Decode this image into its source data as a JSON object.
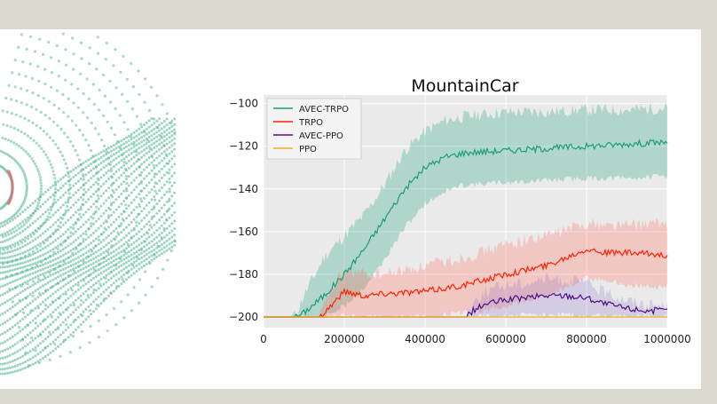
{
  "chart_data": {
    "type": "line",
    "title": "MountainCar",
    "xlabel": "",
    "ylabel": "",
    "xlim": [
      0,
      1000000
    ],
    "ylim": [
      -205,
      -96
    ],
    "x_ticks": [
      0,
      200000,
      400000,
      600000,
      800000,
      1000000
    ],
    "x_tick_labels": [
      "0",
      "200000",
      "400000",
      "600000",
      "800000",
      "1000000"
    ],
    "y_ticks": [
      -200,
      -180,
      -160,
      -140,
      -120,
      -100
    ],
    "y_tick_labels": [
      "−200",
      "−180",
      "−160",
      "−140",
      "−120",
      "−100"
    ],
    "grid": true,
    "legend_position": "top-left",
    "series": [
      {
        "name": "AVEC-TRPO",
        "color": "#1a9e77",
        "band_color": "#1a9e77",
        "x": [
          0,
          60000,
          80000,
          100000,
          150000,
          200000,
          250000,
          300000,
          350000,
          400000,
          450000,
          500000,
          600000,
          700000,
          800000,
          900000,
          1000000
        ],
        "mean": [
          -200,
          -200,
          -200,
          -198,
          -190,
          -180,
          -168,
          -154,
          -140,
          -130,
          -125,
          -123,
          -122,
          -121,
          -120,
          -119,
          -118
        ],
        "upper": [
          -200,
          -200,
          -199,
          -190,
          -172,
          -162,
          -152,
          -138,
          -122,
          -113,
          -108,
          -106,
          -104,
          -104,
          -103,
          -103,
          -102
        ],
        "lower": [
          -200,
          -200,
          -200,
          -200,
          -200,
          -195,
          -186,
          -173,
          -158,
          -147,
          -141,
          -138,
          -137,
          -136,
          -135,
          -135,
          -134
        ]
      },
      {
        "name": "TRPO",
        "color": "#ff2200",
        "band_color": "#ff6b5a",
        "x": [
          0,
          140000,
          160000,
          200000,
          250000,
          300000,
          400000,
          500000,
          600000,
          700000,
          800000,
          850000,
          900000,
          1000000
        ],
        "mean": [
          -200,
          -200,
          -196,
          -188,
          -190,
          -189,
          -188,
          -185,
          -180,
          -176,
          -168,
          -170,
          -170,
          -171
        ],
        "upper": [
          -200,
          -200,
          -190,
          -178,
          -180,
          -180,
          -176,
          -172,
          -166,
          -162,
          -156,
          -157,
          -157,
          -156
        ],
        "lower": [
          -200,
          -200,
          -200,
          -199,
          -200,
          -200,
          -200,
          -198,
          -195,
          -190,
          -182,
          -183,
          -185,
          -186
        ]
      },
      {
        "name": "AVEC-PPO",
        "color": "#4b0f8a",
        "band_color": "#9a7dc7",
        "x": [
          0,
          500000,
          520000,
          550000,
          600000,
          650000,
          700000,
          750000,
          800000,
          850000,
          900000,
          950000,
          1000000
        ],
        "mean": [
          -200,
          -200,
          -197,
          -194,
          -192,
          -191,
          -190,
          -190,
          -191,
          -194,
          -196,
          -197,
          -197
        ],
        "upper": [
          -200,
          -200,
          -193,
          -188,
          -185,
          -184,
          -182,
          -183,
          -184,
          -189,
          -192,
          -194,
          -195
        ],
        "lower": [
          -200,
          -200,
          -200,
          -200,
          -200,
          -199,
          -199,
          -199,
          -199,
          -200,
          -200,
          -200,
          -200
        ]
      },
      {
        "name": "PPO",
        "color": "#f0b020",
        "band_color": "#f0b020",
        "x": [
          0,
          1000000
        ],
        "mean": [
          -200,
          -200
        ],
        "upper": [
          -200,
          -200
        ],
        "lower": [
          -200,
          -200
        ]
      }
    ]
  },
  "left_art": {
    "dot_color": "#3aaa85",
    "accent_color": "#e06a6a"
  }
}
